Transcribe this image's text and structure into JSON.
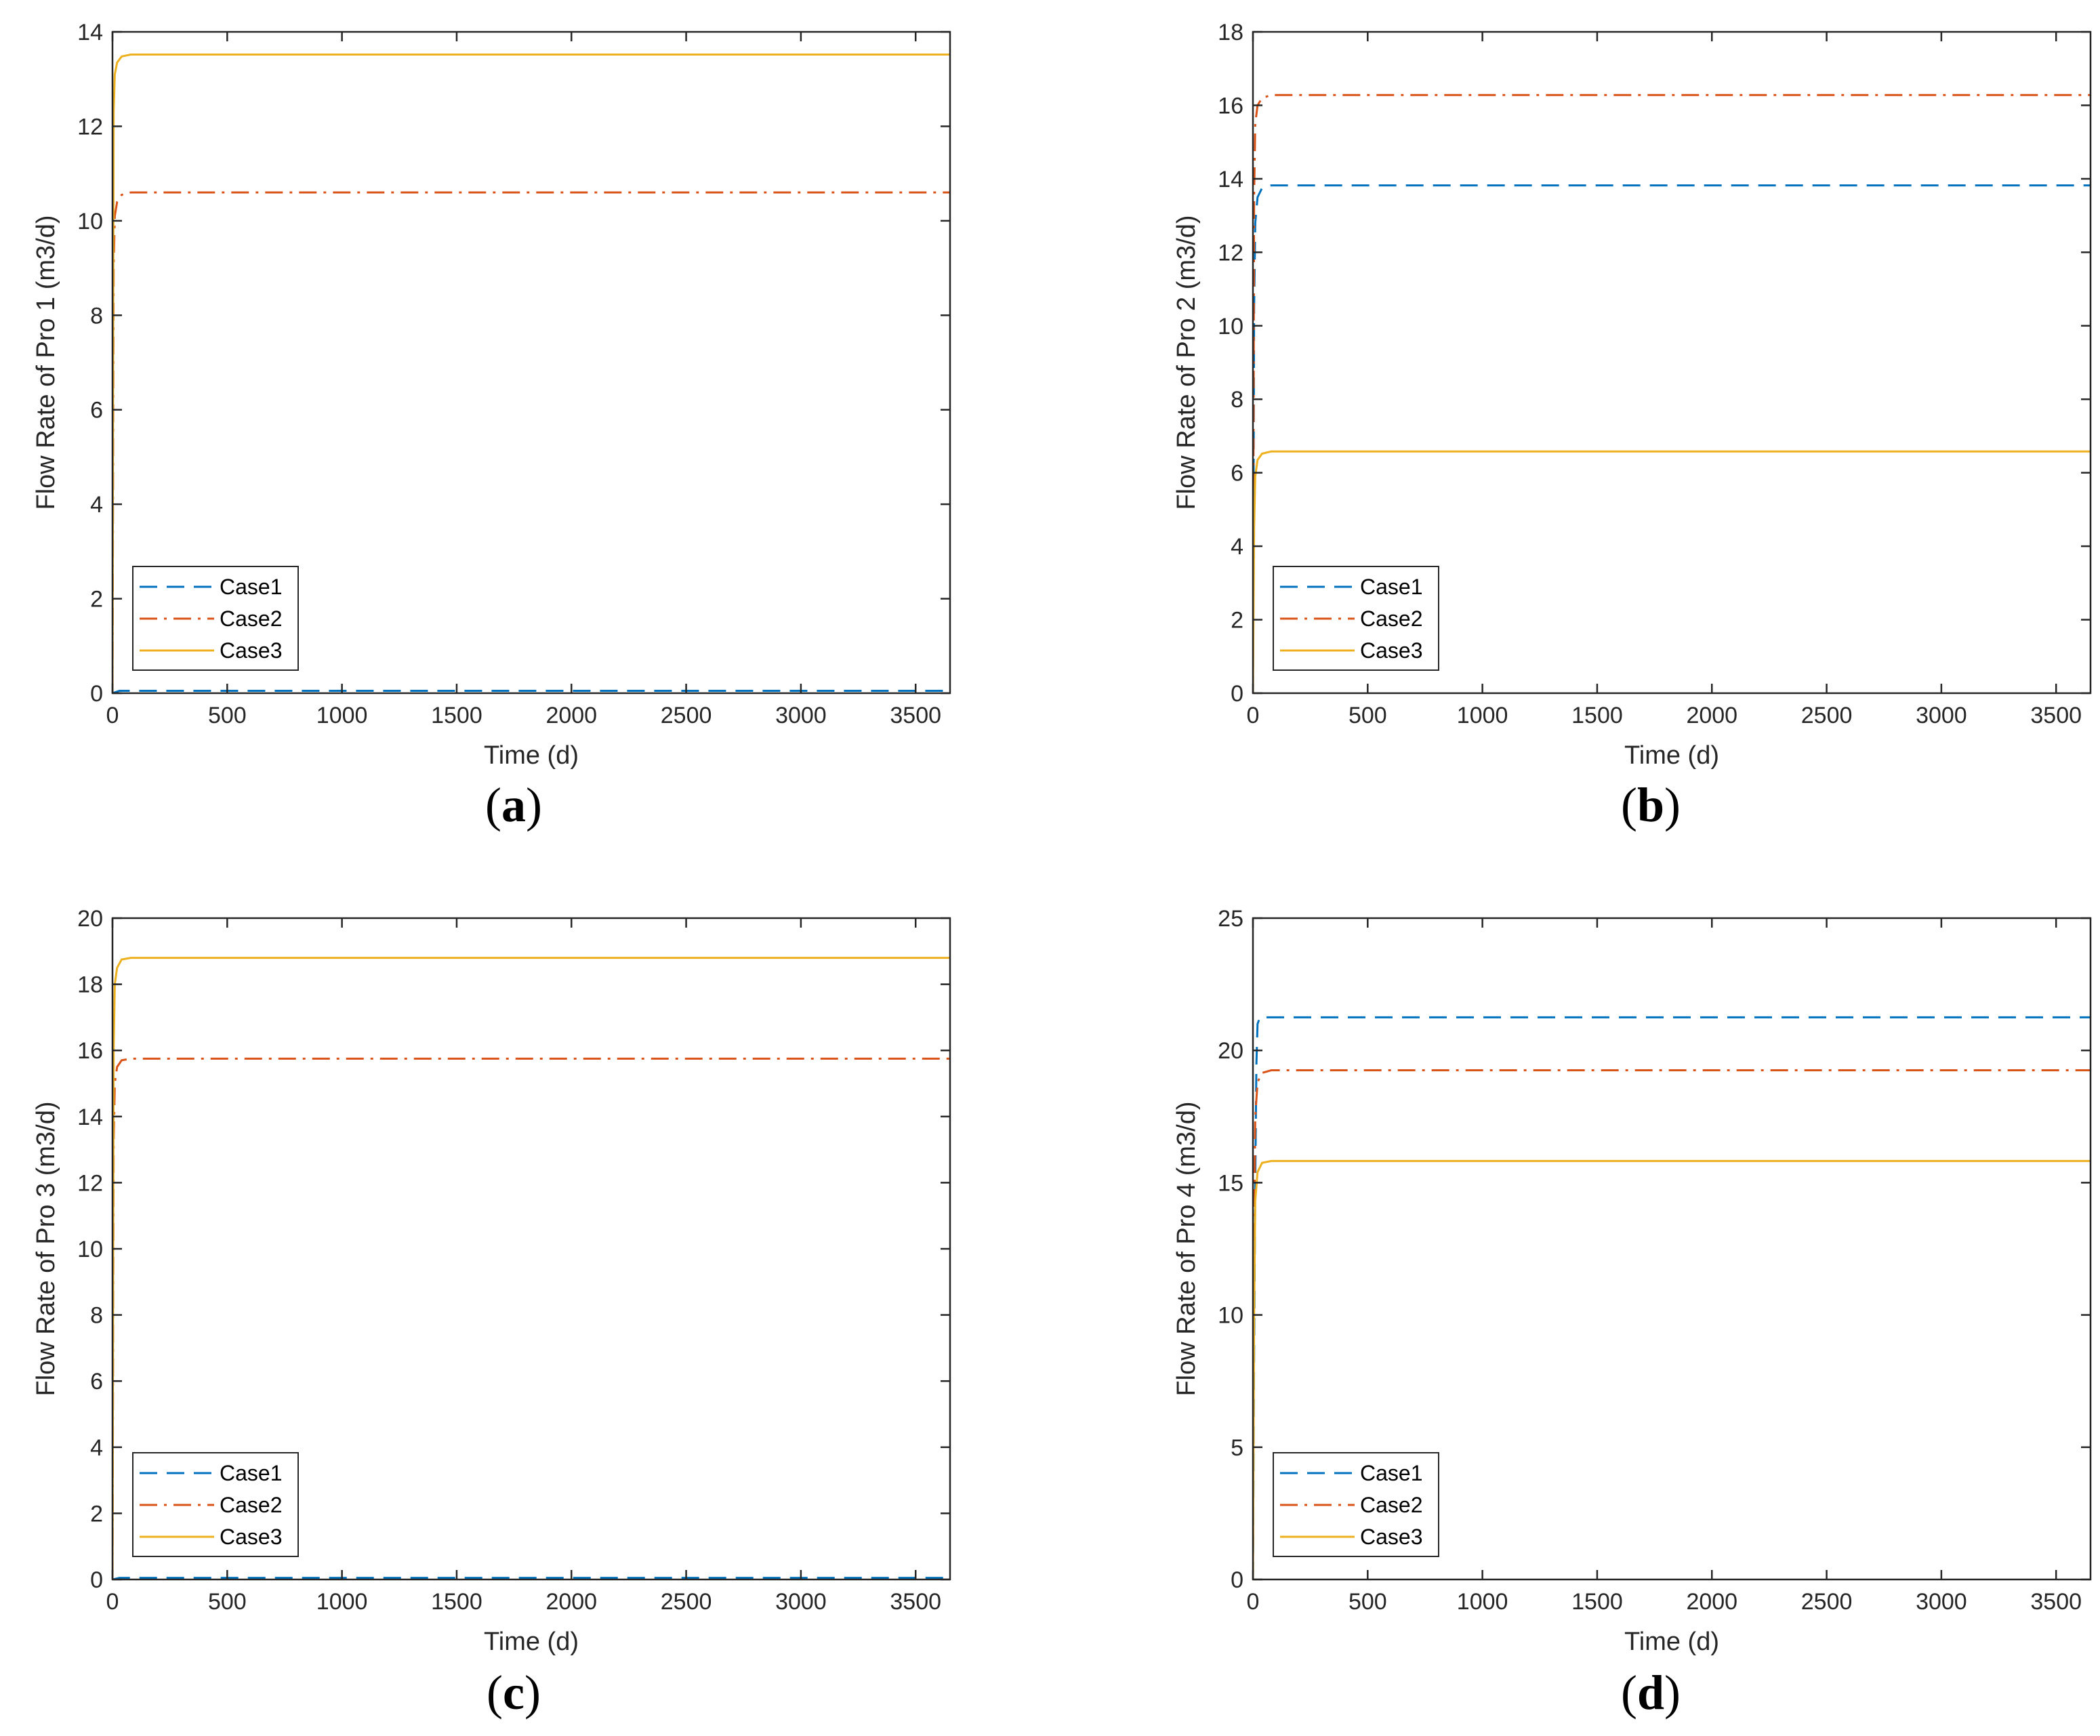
{
  "figure": {
    "panel_labels": [
      {
        "open": "(",
        "letter": "a",
        "close": ")"
      },
      {
        "open": "(",
        "letter": "b",
        "close": ")"
      },
      {
        "open": "(",
        "letter": "c",
        "close": ")"
      },
      {
        "open": "(",
        "letter": "d",
        "close": ")"
      }
    ]
  },
  "colors": {
    "case1": "#0072BD",
    "case2": "#D95319",
    "case3": "#EDB120",
    "axis": "#262626"
  },
  "chart_data": [
    {
      "type": "line",
      "panel": "a",
      "title": "",
      "xlabel": "Time (d)",
      "ylabel": "Flow Rate of Pro 1 (m3/d)",
      "xlim": [
        0,
        3650
      ],
      "ylim": [
        0,
        14
      ],
      "xticks": [
        0,
        500,
        1000,
        1500,
        2000,
        2500,
        3000,
        3500
      ],
      "yticks": [
        0,
        2,
        4,
        6,
        8,
        10,
        12,
        14
      ],
      "legend_position": "bottom-left",
      "series": [
        {
          "name": "Case1",
          "style": "dashed",
          "color": "#0072BD",
          "x": [
            0,
            30,
            3650
          ],
          "y": [
            0,
            0.05,
            0.05
          ]
        },
        {
          "name": "Case2",
          "style": "dashdot",
          "color": "#D95319",
          "x": [
            0,
            5,
            10,
            20,
            40,
            80,
            3650
          ],
          "y": [
            0,
            9.0,
            10.1,
            10.4,
            10.55,
            10.6,
            10.6
          ]
        },
        {
          "name": "Case3",
          "style": "solid",
          "color": "#EDB120",
          "x": [
            0,
            5,
            10,
            20,
            40,
            80,
            3650
          ],
          "y": [
            0,
            12.3,
            13.1,
            13.35,
            13.48,
            13.52,
            13.52
          ]
        }
      ]
    },
    {
      "type": "line",
      "panel": "b",
      "title": "",
      "xlabel": "Time (d)",
      "ylabel": "Flow Rate of Pro 2 (m3/d)",
      "xlim": [
        0,
        3650
      ],
      "ylim": [
        0,
        18
      ],
      "xticks": [
        0,
        500,
        1000,
        1500,
        2000,
        2500,
        3000,
        3500
      ],
      "yticks": [
        0,
        2,
        4,
        6,
        8,
        10,
        12,
        14,
        16,
        18
      ],
      "legend_position": "bottom-left",
      "series": [
        {
          "name": "Case1",
          "style": "dashed",
          "color": "#0072BD",
          "x": [
            0,
            5,
            10,
            20,
            40,
            80,
            3650
          ],
          "y": [
            0,
            10.5,
            12.8,
            13.5,
            13.75,
            13.82,
            13.82
          ]
        },
        {
          "name": "Case2",
          "style": "dashdot",
          "color": "#D95319",
          "x": [
            0,
            5,
            10,
            20,
            40,
            80,
            3650
          ],
          "y": [
            0,
            13.5,
            15.5,
            16.0,
            16.2,
            16.28,
            16.28
          ]
        },
        {
          "name": "Case3",
          "style": "solid",
          "color": "#EDB120",
          "x": [
            0,
            5,
            10,
            20,
            40,
            80,
            3650
          ],
          "y": [
            0,
            4.5,
            5.9,
            6.35,
            6.52,
            6.58,
            6.58
          ]
        }
      ]
    },
    {
      "type": "line",
      "panel": "c",
      "title": "",
      "xlabel": "Time (d)",
      "ylabel": "Flow Rate of Pro 3 (m3/d)",
      "xlim": [
        0,
        3650
      ],
      "ylim": [
        0,
        20
      ],
      "xticks": [
        0,
        500,
        1000,
        1500,
        2000,
        2500,
        3000,
        3500
      ],
      "yticks": [
        0,
        2,
        4,
        6,
        8,
        10,
        12,
        14,
        16,
        18,
        20
      ],
      "legend_position": "bottom-left",
      "series": [
        {
          "name": "Case1",
          "style": "dashed",
          "color": "#0072BD",
          "x": [
            0,
            30,
            3650
          ],
          "y": [
            0,
            0.05,
            0.05
          ]
        },
        {
          "name": "Case2",
          "style": "dashdot",
          "color": "#D95319",
          "x": [
            0,
            5,
            10,
            20,
            40,
            80,
            3650
          ],
          "y": [
            0,
            13.2,
            15.0,
            15.5,
            15.7,
            15.75,
            15.75
          ]
        },
        {
          "name": "Case3",
          "style": "solid",
          "color": "#EDB120",
          "x": [
            0,
            5,
            10,
            20,
            40,
            80,
            3650
          ],
          "y": [
            0,
            16.0,
            18.0,
            18.5,
            18.75,
            18.8,
            18.8
          ]
        }
      ]
    },
    {
      "type": "line",
      "panel": "d",
      "title": "",
      "xlabel": "Time (d)",
      "ylabel": "Flow Rate of Pro 4 (m3/d)",
      "xlim": [
        0,
        3650
      ],
      "ylim": [
        0,
        25
      ],
      "xticks": [
        0,
        500,
        1000,
        1500,
        2000,
        2500,
        3000,
        3500
      ],
      "yticks": [
        0,
        5,
        10,
        15,
        20,
        25
      ],
      "legend_position": "bottom-left",
      "series": [
        {
          "name": "Case1",
          "style": "dashed",
          "color": "#0072BD",
          "x": [
            0,
            5,
            10,
            15,
            20,
            30,
            3650
          ],
          "y": [
            0,
            8.5,
            15.0,
            19.5,
            21.0,
            21.25,
            21.25
          ]
        },
        {
          "name": "Case2",
          "style": "dashdot",
          "color": "#D95319",
          "x": [
            0,
            5,
            10,
            20,
            40,
            80,
            3650
          ],
          "y": [
            0,
            13.0,
            17.5,
            18.8,
            19.15,
            19.25,
            19.25
          ]
        },
        {
          "name": "Case3",
          "style": "solid",
          "color": "#EDB120",
          "x": [
            0,
            5,
            10,
            20,
            40,
            80,
            3650
          ],
          "y": [
            0,
            10.0,
            14.3,
            15.4,
            15.75,
            15.82,
            15.82
          ]
        }
      ]
    }
  ]
}
